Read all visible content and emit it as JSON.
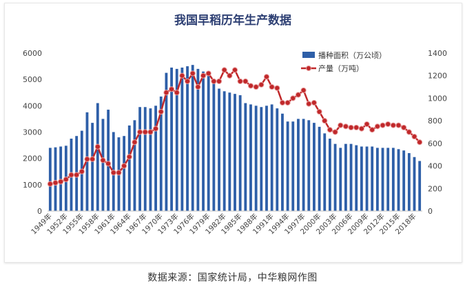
{
  "caption": "数据来源：国家统计局，中华粮网作图",
  "chart_data": {
    "type": "bar+line",
    "title": "我国早稻历年生产数据",
    "x": [
      1949,
      1950,
      1951,
      1952,
      1953,
      1954,
      1955,
      1956,
      1957,
      1958,
      1959,
      1960,
      1961,
      1962,
      1963,
      1964,
      1965,
      1966,
      1967,
      1968,
      1969,
      1970,
      1971,
      1972,
      1973,
      1974,
      1975,
      1976,
      1977,
      1978,
      1979,
      1980,
      1981,
      1982,
      1983,
      1984,
      1985,
      1986,
      1987,
      1988,
      1989,
      1990,
      1991,
      1992,
      1993,
      1994,
      1995,
      1996,
      1997,
      1998,
      1999,
      2000,
      2001,
      2002,
      2003,
      2004,
      2005,
      2006,
      2007,
      2008,
      2009,
      2010,
      2011,
      2012,
      2013,
      2014,
      2015,
      2016,
      2017,
      2018,
      2019
    ],
    "x_tick_labels": [
      "1949年",
      "1952年",
      "1955年",
      "1958年",
      "1961年",
      "1964年",
      "1967年",
      "1970年",
      "1973年",
      "1976年",
      "1979年",
      "1982年",
      "1985年",
      "1988年",
      "1991年",
      "1994年",
      "1997年",
      "2000年",
      "2003年",
      "2006年",
      "2009年",
      "2012年",
      "2015年",
      "2018年"
    ],
    "series": [
      {
        "name": "播种面积（万公顷）",
        "type": "bar",
        "axis": "left",
        "color": "#2e5fa8",
        "values": [
          2400,
          2420,
          2450,
          2480,
          2750,
          2850,
          3050,
          3750,
          3350,
          4100,
          3500,
          3850,
          3000,
          2800,
          2850,
          3250,
          3450,
          3950,
          3950,
          3900,
          4000,
          4350,
          5250,
          5450,
          5400,
          5450,
          5500,
          5550,
          5400,
          5300,
          5250,
          4900,
          4650,
          4550,
          4500,
          4450,
          4400,
          4100,
          4050,
          4000,
          3950,
          4000,
          4050,
          3900,
          3700,
          3400,
          3400,
          3500,
          3500,
          3450,
          3350,
          3200,
          2950,
          2750,
          2550,
          2400,
          2550,
          2550,
          2500,
          2450,
          2450,
          2450,
          2400,
          2400,
          2400,
          2400,
          2350,
          2300,
          2200,
          2050,
          1900
        ]
      },
      {
        "name": "产量（万吨）",
        "type": "line",
        "axis": "right",
        "color": "#c0282a",
        "values": [
          240,
          250,
          260,
          280,
          320,
          320,
          350,
          460,
          460,
          570,
          450,
          420,
          340,
          340,
          400,
          480,
          610,
          700,
          700,
          700,
          730,
          880,
          1050,
          1080,
          1050,
          1200,
          1150,
          1220,
          1100,
          1200,
          1220,
          1150,
          1150,
          1250,
          1200,
          1250,
          1150,
          1150,
          1110,
          1100,
          1120,
          1190,
          1100,
          1090,
          960,
          960,
          1000,
          1030,
          1070,
          950,
          960,
          880,
          800,
          720,
          700,
          760,
          750,
          740,
          740,
          730,
          770,
          720,
          750,
          760,
          770,
          760,
          760,
          740,
          700,
          660,
          610
        ]
      }
    ],
    "y_left": {
      "ticks": [
        "0",
        "1000",
        "2000",
        "3000",
        "4000",
        "5000",
        "6000"
      ],
      "range": [
        0,
        6000
      ]
    },
    "y_right": {
      "ticks": [
        "0",
        "200",
        "400",
        "600",
        "800",
        "1000",
        "1200",
        "1400"
      ],
      "range": [
        0,
        1400
      ]
    },
    "legend_position": "top-right",
    "grid": false
  }
}
